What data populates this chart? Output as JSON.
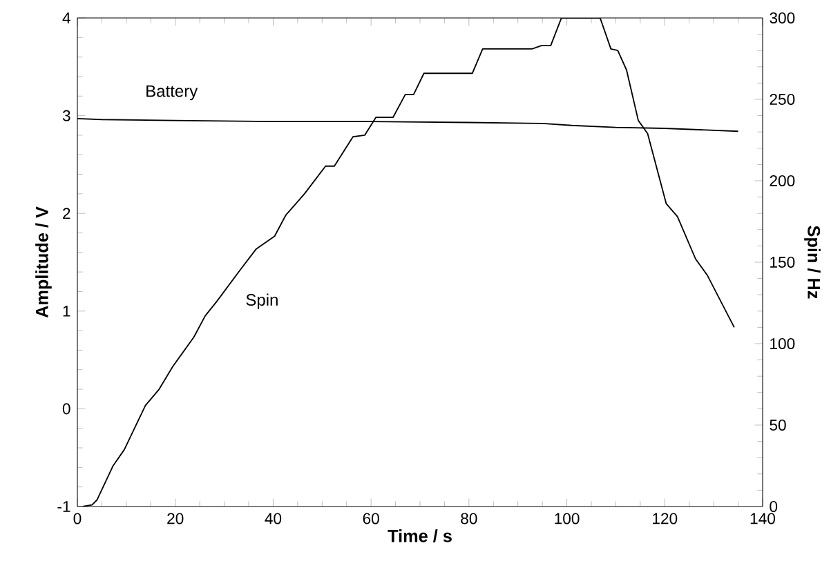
{
  "chart_data": {
    "type": "line",
    "xlabel": "Time / s",
    "ylabel": "Amplitude / V",
    "y2label": "Spin / Hz",
    "xlim": [
      0,
      140
    ],
    "xticks": [
      0,
      20,
      40,
      60,
      80,
      100,
      120,
      140
    ],
    "ylim": [
      -1,
      4
    ],
    "yticks": [
      -1,
      0,
      1,
      2,
      3,
      4
    ],
    "y2lim": [
      0,
      300
    ],
    "y2ticks": [
      0,
      50,
      100,
      150,
      200,
      250,
      300
    ],
    "marker": "none",
    "line_style": "solid",
    "series": [
      {
        "name": "Battery",
        "color": "#000000",
        "x": [
          0,
          5,
          20,
          40,
          60,
          80,
          95,
          101,
          110,
          120,
          135
        ],
        "values": [
          2.97,
          2.96,
          2.95,
          2.94,
          2.94,
          2.93,
          2.92,
          2.9,
          2.88,
          2.87,
          2.84
        ]
      },
      {
        "name": "Spin",
        "color": "#000000",
        "axis": "y2",
        "x": [
          1.1,
          3,
          4,
          7.3,
          9.6,
          13.9,
          16.7,
          19.5,
          23.8,
          26.1,
          28.5,
          33.2,
          36.5,
          40.3,
          42.6,
          46.4,
          50.7,
          52.5,
          56.3,
          58.7,
          61,
          64.5,
          67,
          68.7,
          70.8,
          80.7,
          82.8,
          92.9,
          94.8,
          96.7,
          98.9,
          106.8,
          109,
          110.4,
          112.2,
          114.6,
          116.5,
          120.3,
          122.6,
          126.3,
          128.7,
          134.2
        ],
        "values": [
          0,
          1,
          4,
          25,
          35,
          62,
          72,
          86,
          104,
          117,
          126,
          145,
          158,
          166,
          179,
          192,
          209,
          209,
          227,
          228,
          239,
          239,
          253,
          253,
          266,
          266,
          281,
          281,
          283,
          283,
          300,
          300,
          281,
          280,
          268,
          237,
          229,
          186,
          178,
          152,
          142,
          110
        ]
      }
    ]
  }
}
